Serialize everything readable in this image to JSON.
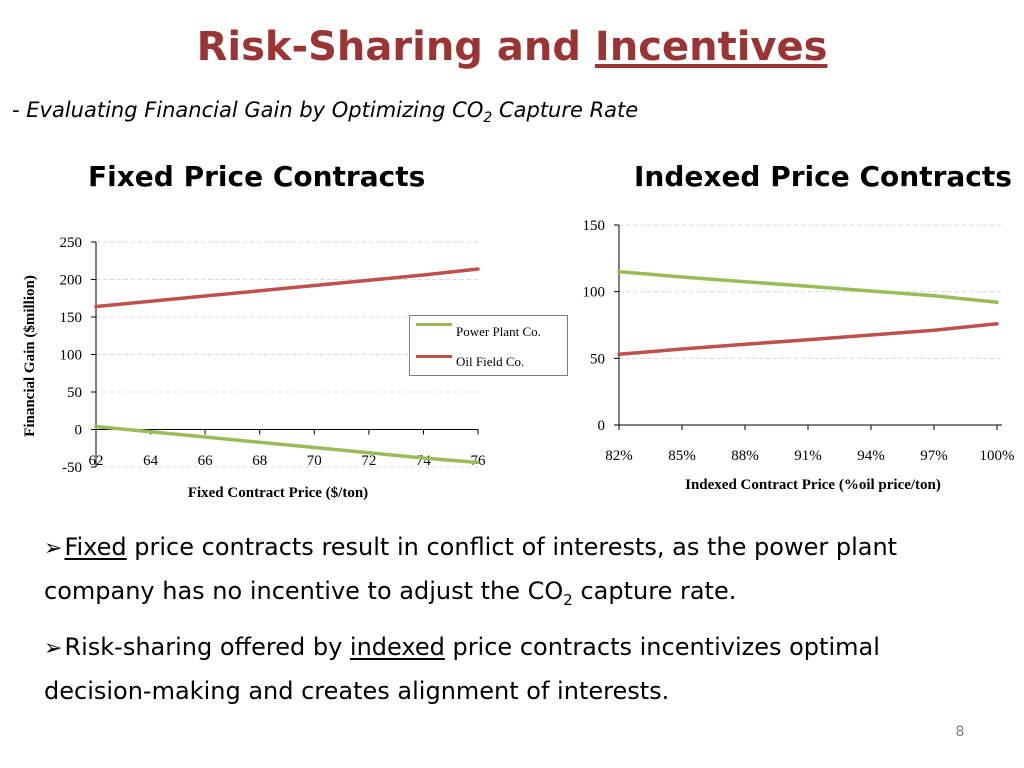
{
  "slide": {
    "title_part1": "Risk-Sharing and ",
    "title_part2": "Incentives",
    "subtitle_prefix": "- Evaluating Financial Gain by Optimizing CO",
    "subtitle_sub": "2",
    "subtitle_suffix": " Capture Rate",
    "page_number": "8"
  },
  "headings": {
    "fixed": "Fixed Price Contracts",
    "indexed": "Indexed Price Contracts"
  },
  "bullets": [
    {
      "underlined": "Fixed",
      "text_before_sub": " price contracts result in conflict of interests, as the power plant company has no incentive to adjust the CO",
      "sub": "2",
      "text_after_sub": " capture rate."
    },
    {
      "prefix": "Risk-sharing offered by ",
      "underlined": "indexed",
      "text": " price contracts incentivizes optimal decision-making and creates alignment of interests."
    }
  ],
  "colors": {
    "title": "#9B3535",
    "power_plant": "#9BBB59",
    "oil_field": "#C0504D",
    "gridline": "#D9D9D9"
  },
  "chart_data": [
    {
      "type": "line",
      "x": [
        62,
        64,
        66,
        68,
        70,
        72,
        74,
        76
      ],
      "xticks": [
        "62",
        "64",
        "66",
        "68",
        "70",
        "72",
        "74",
        "76"
      ],
      "yticks": [
        "-50",
        "0",
        "50",
        "100",
        "150",
        "200",
        "250"
      ],
      "ylim": [
        -50,
        250
      ],
      "xlabel": "Fixed Contract Price ($/ton)",
      "ylabel": "Financial Gain ($million)",
      "series": [
        {
          "name": "Power Plant Co.",
          "color": "#9BBB59",
          "values": [
            4,
            -3,
            -10,
            -17,
            -24,
            -31,
            -38,
            -44
          ]
        },
        {
          "name": "Oil Field Co.",
          "color": "#C0504D",
          "values": [
            164,
            171,
            178,
            185,
            192,
            199,
            206,
            214
          ]
        }
      ],
      "legend": "right",
      "grid": true
    },
    {
      "type": "line",
      "x": [
        82,
        85,
        88,
        91,
        94,
        97,
        100
      ],
      "xticks": [
        "82%",
        "85%",
        "88%",
        "91%",
        "94%",
        "97%",
        "100%"
      ],
      "yticks": [
        "0",
        "50",
        "100",
        "150"
      ],
      "ylim": [
        0,
        150
      ],
      "xlabel": "Indexed Contract Price (%oil price/ton)",
      "ylabel": "",
      "series": [
        {
          "color": "#9BBB59",
          "values": [
            115,
            111,
            107.5,
            104,
            100.5,
            97,
            92
          ]
        },
        {
          "color": "#C0504D",
          "values": [
            53,
            57,
            60.5,
            64,
            67.5,
            71,
            76
          ]
        }
      ],
      "grid": true
    }
  ]
}
